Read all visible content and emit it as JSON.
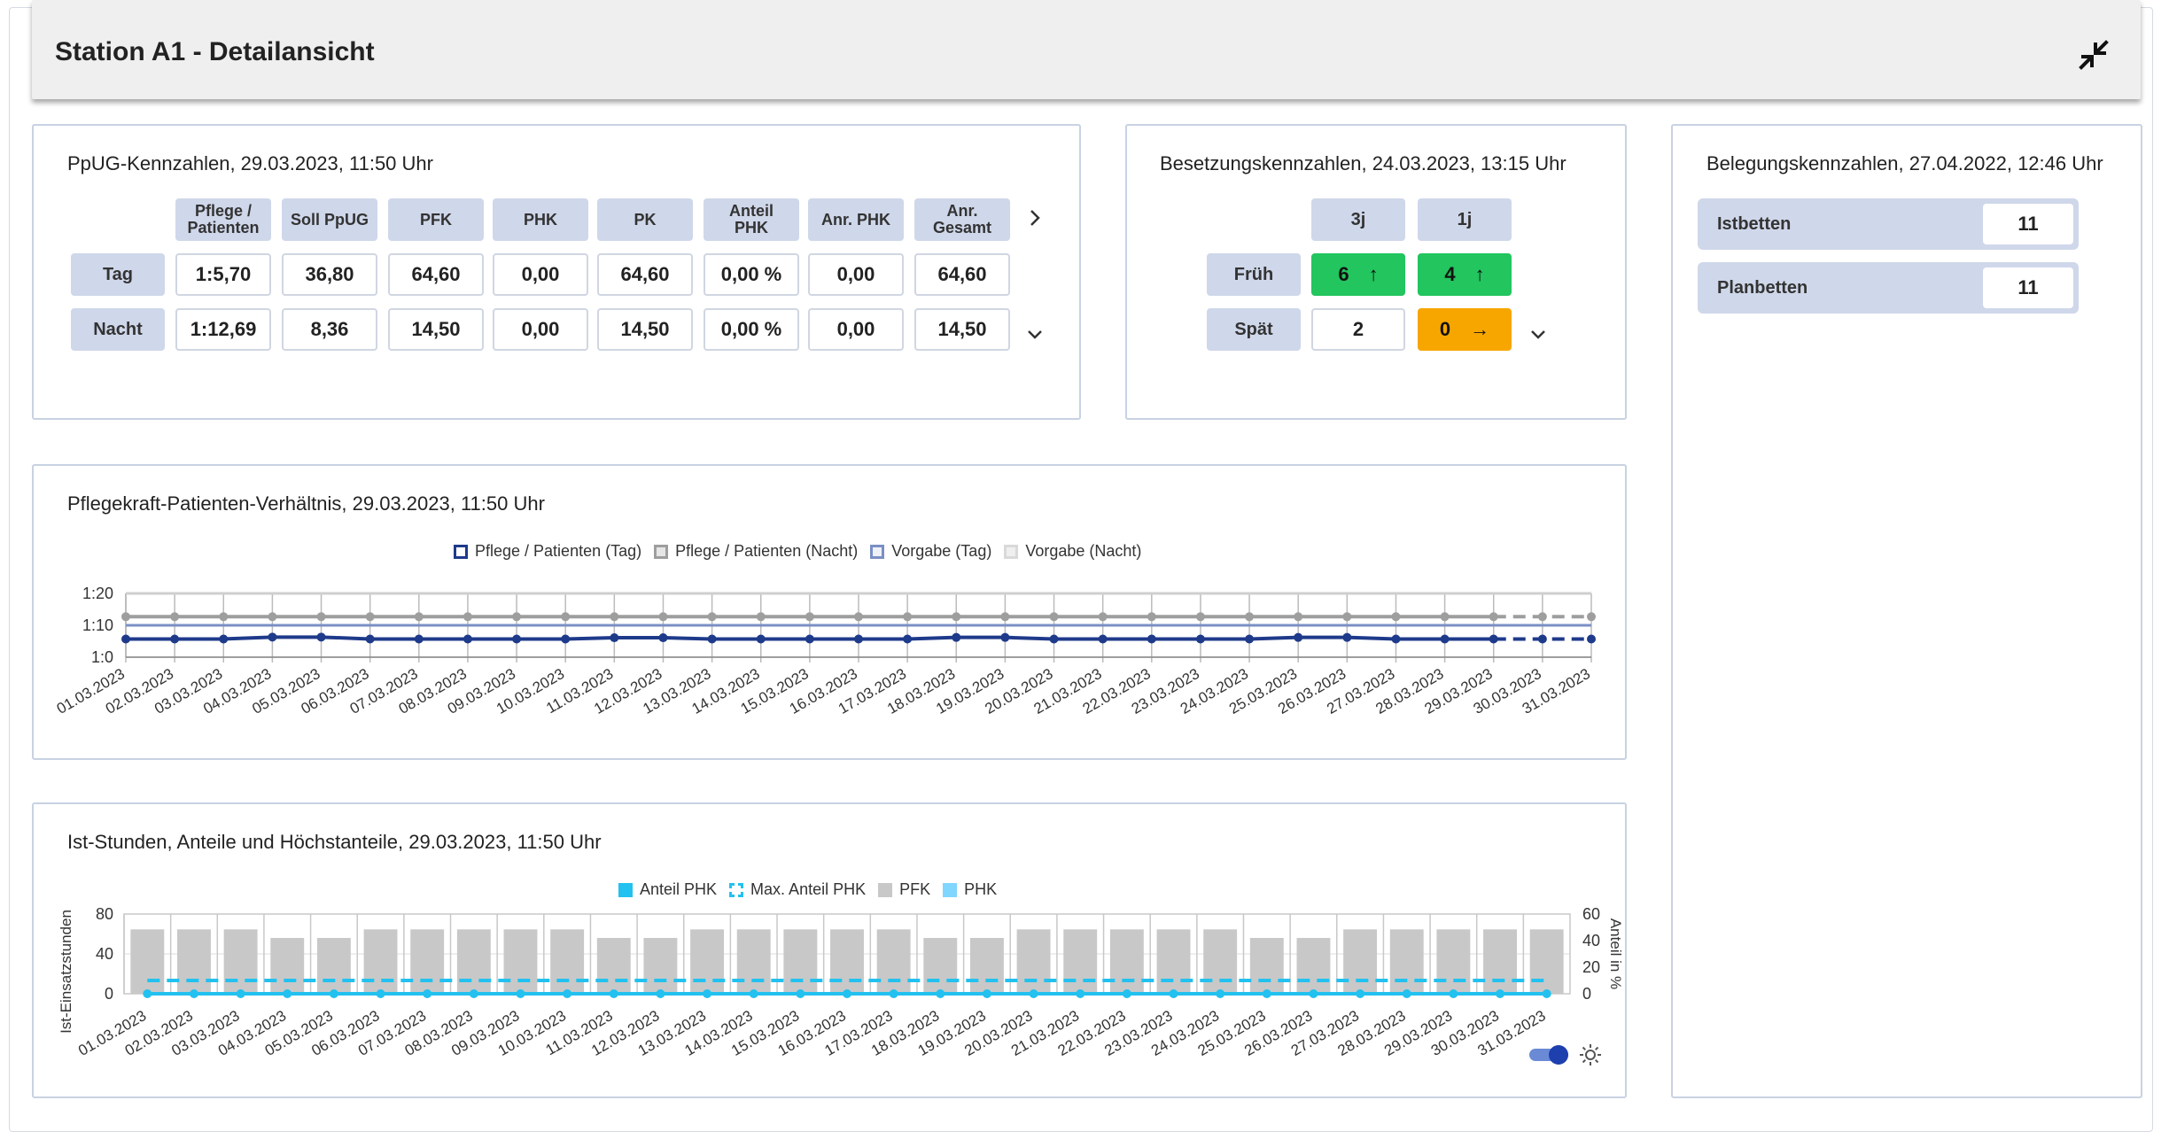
{
  "header": {
    "title": "Station A1 - Detailansicht",
    "collapse_icon": "collapse-icon"
  },
  "ppug": {
    "title": "PpUG-Kennzahlen, 29.03.2023, 11:50 Uhr",
    "columns": [
      [
        "Pflege /",
        "Patienten"
      ],
      [
        "Soll PpUG"
      ],
      [
        "PFK"
      ],
      [
        "PHK"
      ],
      [
        "PK"
      ],
      [
        "Anteil",
        "PHK"
      ],
      [
        "Anr. PHK"
      ],
      [
        "Anr.",
        "Gesamt"
      ]
    ],
    "rows": [
      {
        "label": "Tag",
        "values": [
          "1:5,70",
          "36,80",
          "64,60",
          "0,00",
          "64,60",
          "0,00 %",
          "0,00",
          "64,60"
        ]
      },
      {
        "label": "Nacht",
        "values": [
          "1:12,69",
          "8,36",
          "14,50",
          "0,00",
          "14,50",
          "0,00 %",
          "0,00",
          "14,50"
        ]
      }
    ]
  },
  "besetzung": {
    "title": "Besetzungskennzahlen, 24.03.2023, 13:15 Uhr",
    "columns": [
      "3j",
      "1j"
    ],
    "rows": [
      {
        "label": "Früh",
        "cells": [
          {
            "value": "6",
            "arrow": "↑",
            "status": "green"
          },
          {
            "value": "4",
            "arrow": "↑",
            "status": "green"
          }
        ]
      },
      {
        "label": "Spät",
        "cells": [
          {
            "value": "2",
            "arrow": "",
            "status": "plain"
          },
          {
            "value": "0",
            "arrow": "→",
            "status": "orange"
          }
        ]
      }
    ],
    "colors": {
      "green": "#22c55e",
      "orange": "#f7a600"
    }
  },
  "belegung": {
    "title": "Belegungskennzahlen, 27.04.2022, 12:46 Uhr",
    "rows": [
      {
        "label": "Istbetten",
        "value": "11"
      },
      {
        "label": "Planbetten",
        "value": "11"
      }
    ]
  },
  "ratio_chart": {
    "title": "Pflegekraft-Patienten-Verhältnis, 29.03.2023, 11:50 Uhr",
    "legend": [
      "Pflege / Patienten (Tag)",
      "Pflege / Patienten (Nacht)",
      "Vorgabe (Tag)",
      "Vorgabe (Nacht)"
    ]
  },
  "hours_chart": {
    "title": "Ist-Stunden, Anteile und Höchstanteile, 29.03.2023, 11:50 Uhr",
    "legend": [
      "Anteil PHK",
      "Max. Anteil PHK",
      "PFK",
      "PHK"
    ],
    "toggle_on": true,
    "settings_icon": "brightness-icon"
  },
  "chart_data": [
    {
      "type": "line",
      "x": [
        "01.03.2023",
        "02.03.2023",
        "03.03.2023",
        "04.03.2023",
        "05.03.2023",
        "06.03.2023",
        "07.03.2023",
        "08.03.2023",
        "09.03.2023",
        "10.03.2023",
        "11.03.2023",
        "12.03.2023",
        "13.03.2023",
        "14.03.2023",
        "15.03.2023",
        "16.03.2023",
        "17.03.2023",
        "18.03.2023",
        "19.03.2023",
        "20.03.2023",
        "21.03.2023",
        "22.03.2023",
        "23.03.2023",
        "24.03.2023",
        "25.03.2023",
        "26.03.2023",
        "27.03.2023",
        "28.03.2023",
        "29.03.2023",
        "30.03.2023",
        "31.03.2023"
      ],
      "yticks": [
        "1:0",
        "1:10",
        "1:20"
      ],
      "ylim": [
        0,
        20
      ],
      "series": [
        {
          "name": "Pflege / Patienten (Tag)",
          "color": "#1e3a8a",
          "values": [
            5.7,
            5.7,
            5.7,
            6.3,
            6.3,
            5.7,
            5.7,
            5.7,
            5.7,
            5.7,
            6.1,
            6.1,
            5.7,
            5.7,
            5.7,
            5.7,
            5.7,
            6.2,
            6.2,
            5.7,
            5.7,
            5.7,
            5.7,
            5.7,
            6.2,
            6.2,
            5.7,
            5.7,
            5.7,
            5.7,
            5.7
          ]
        },
        {
          "name": "Pflege / Patienten (Nacht)",
          "color": "#9e9e9e",
          "values": [
            12.7,
            12.7,
            12.7,
            12.7,
            12.7,
            12.7,
            12.7,
            12.7,
            12.7,
            12.7,
            12.7,
            12.7,
            12.7,
            12.7,
            12.7,
            12.7,
            12.7,
            12.7,
            12.7,
            12.7,
            12.7,
            12.7,
            12.7,
            12.7,
            12.7,
            12.7,
            12.7,
            12.7,
            12.7,
            12.7,
            12.7
          ]
        },
        {
          "name": "Vorgabe (Tag)",
          "color": "#7a8fc4",
          "values": [
            10,
            10,
            10,
            10,
            10,
            10,
            10,
            10,
            10,
            10,
            10,
            10,
            10,
            10,
            10,
            10,
            10,
            10,
            10,
            10,
            10,
            10,
            10,
            10,
            10,
            10,
            10,
            10,
            10,
            10,
            10
          ]
        },
        {
          "name": "Vorgabe (Nacht)",
          "color": "#cfcfcf",
          "values": [
            20,
            20,
            20,
            20,
            20,
            20,
            20,
            20,
            20,
            20,
            20,
            20,
            20,
            20,
            20,
            20,
            20,
            20,
            20,
            20,
            20,
            20,
            20,
            20,
            20,
            20,
            20,
            20,
            20,
            20,
            20
          ]
        }
      ],
      "grid": true,
      "legend_position": "top"
    },
    {
      "type": "bar",
      "categories": [
        "01.03.2023",
        "02.03.2023",
        "03.03.2023",
        "04.03.2023",
        "05.03.2023",
        "06.03.2023",
        "07.03.2023",
        "08.03.2023",
        "09.03.2023",
        "10.03.2023",
        "11.03.2023",
        "12.03.2023",
        "13.03.2023",
        "14.03.2023",
        "15.03.2023",
        "16.03.2023",
        "17.03.2023",
        "18.03.2023",
        "19.03.2023",
        "20.03.2023",
        "21.03.2023",
        "22.03.2023",
        "23.03.2023",
        "24.03.2023",
        "25.03.2023",
        "26.03.2023",
        "27.03.2023",
        "28.03.2023",
        "29.03.2023",
        "30.03.2023",
        "31.03.2023"
      ],
      "ylabel": "Ist-Einsatzstunden",
      "y2label": "Anteil in %",
      "ylim": [
        0,
        80
      ],
      "y2lim": [
        0,
        60
      ],
      "yticks": [
        0,
        40,
        80
      ],
      "y2ticks": [
        0,
        20,
        40,
        60
      ],
      "series": [
        {
          "name": "PFK",
          "color": "#c8c8c8",
          "axis": "left",
          "values": [
            64.6,
            64.6,
            64.6,
            56,
            56,
            64.6,
            64.6,
            64.6,
            64.6,
            64.6,
            56,
            56,
            64.6,
            64.6,
            64.6,
            64.6,
            64.6,
            56,
            56,
            64.6,
            64.6,
            64.6,
            64.6,
            64.6,
            56,
            56,
            64.6,
            64.6,
            64.6,
            64.6,
            64.6
          ]
        },
        {
          "name": "PHK",
          "color": "#7fd6ff",
          "axis": "left",
          "values": [
            0,
            0,
            0,
            0,
            0,
            0,
            0,
            0,
            0,
            0,
            0,
            0,
            0,
            0,
            0,
            0,
            0,
            0,
            0,
            0,
            0,
            0,
            0,
            0,
            0,
            0,
            0,
            0,
            0,
            0,
            0
          ]
        },
        {
          "name": "Anteil PHK",
          "color": "#22c1ef",
          "axis": "right",
          "values": [
            0,
            0,
            0,
            0,
            0,
            0,
            0,
            0,
            0,
            0,
            0,
            0,
            0,
            0,
            0,
            0,
            0,
            0,
            0,
            0,
            0,
            0,
            0,
            0,
            0,
            0,
            0,
            0,
            0,
            0,
            0
          ]
        },
        {
          "name": "Max. Anteil PHK",
          "color": "#22c1ef",
          "axis": "right",
          "dashed": true,
          "values": [
            10,
            10,
            10,
            10,
            10,
            10,
            10,
            10,
            10,
            10,
            10,
            10,
            10,
            10,
            10,
            10,
            10,
            10,
            10,
            10,
            10,
            10,
            10,
            10,
            10,
            10,
            10,
            10,
            10,
            10,
            10
          ]
        }
      ],
      "grid": true,
      "legend_position": "top"
    }
  ]
}
